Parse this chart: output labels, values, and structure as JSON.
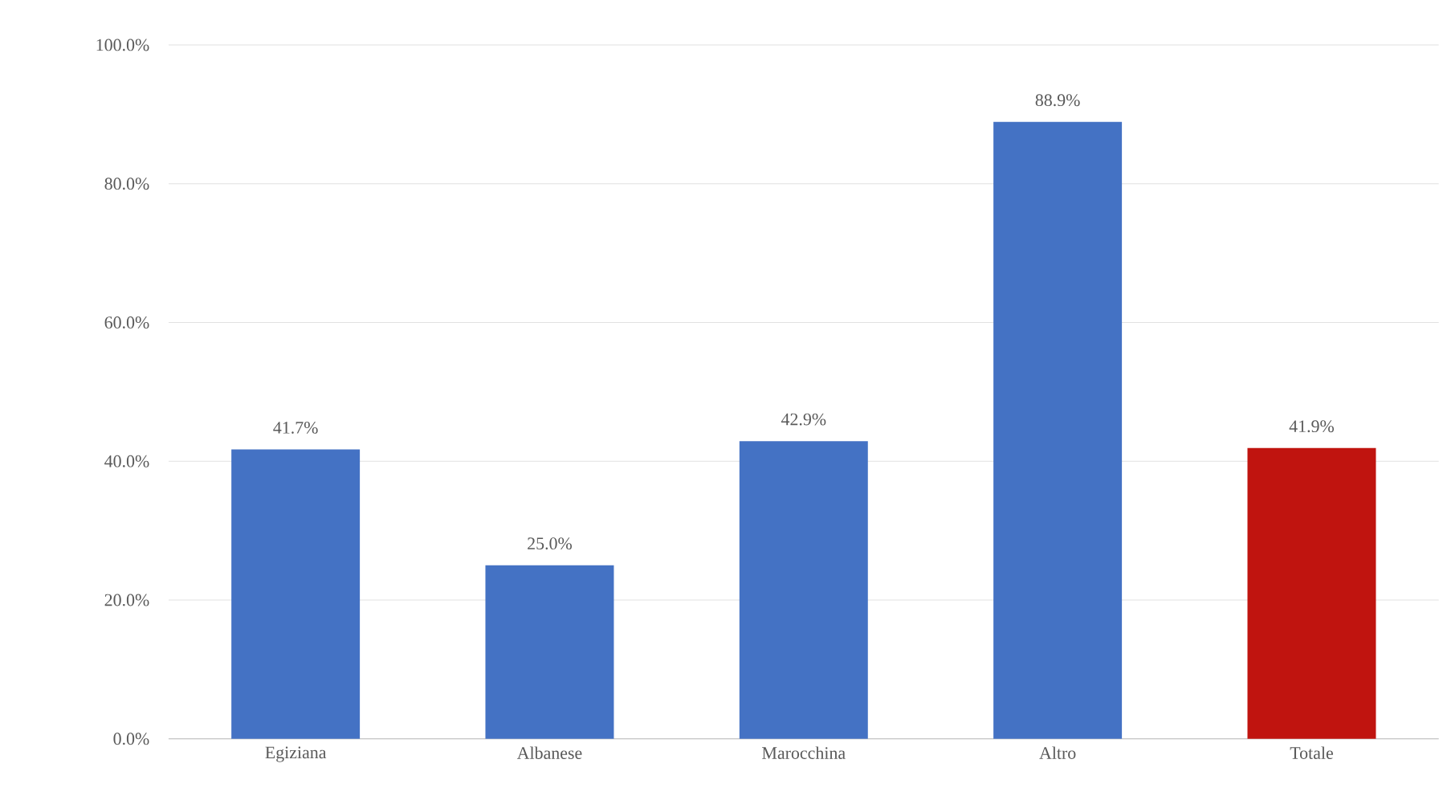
{
  "chart_data": {
    "type": "bar",
    "categories": [
      "Egiziana",
      "Albanese",
      "Marocchina",
      "Altro",
      "Totale"
    ],
    "values": [
      41.7,
      25.0,
      42.9,
      88.9,
      41.9
    ],
    "colors": [
      "#4472c4",
      "#4472c4",
      "#4472c4",
      "#4472c4",
      "#c0140f"
    ],
    "value_labels": [
      "41.7%",
      "25.0%",
      "42.9%",
      "88.9%",
      "41.9%"
    ],
    "ylim": [
      0,
      100
    ],
    "yticks": [
      {
        "value": 0,
        "label": "0.0%"
      },
      {
        "value": 20,
        "label": "20.0%"
      },
      {
        "value": 40,
        "label": "40.0%"
      },
      {
        "value": 60,
        "label": "60.0%"
      },
      {
        "value": 80,
        "label": "80.0%"
      },
      {
        "value": 100,
        "label": "100.0%"
      }
    ],
    "grid": "y"
  }
}
